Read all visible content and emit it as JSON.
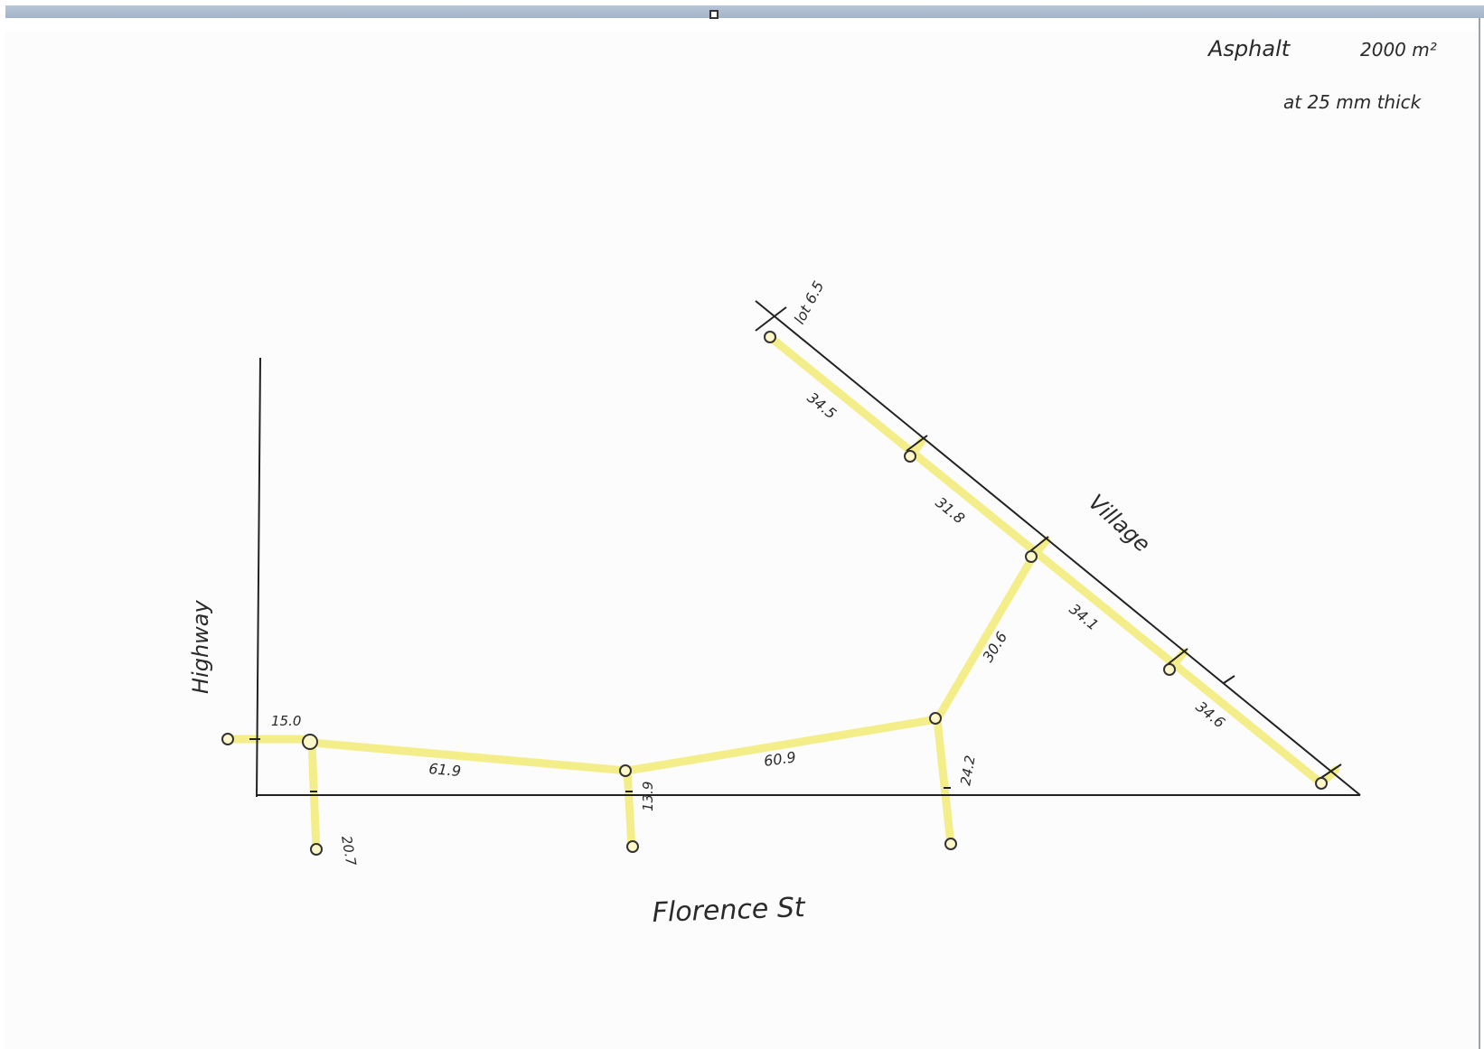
{
  "notes": {
    "line1_label": "Asphalt",
    "line1_value": "2000 m²",
    "line2": "at 25 mm thick"
  },
  "streets": {
    "highway": "Highway",
    "florence": "Florence St",
    "village": "Village"
  },
  "measurements": {
    "lot": "lot 6.5",
    "d1": "15.0",
    "d2": "20.7",
    "d3": "61.9",
    "d4": "13.9",
    "d5": "60.9",
    "d6": "24.2",
    "d7": "30.6",
    "d8": "34.1",
    "d9": "31.8",
    "d10": "34.6",
    "d11": "34.5"
  },
  "colors": {
    "highlight": "#f4ee8a",
    "ink": "#2a2a2a"
  }
}
